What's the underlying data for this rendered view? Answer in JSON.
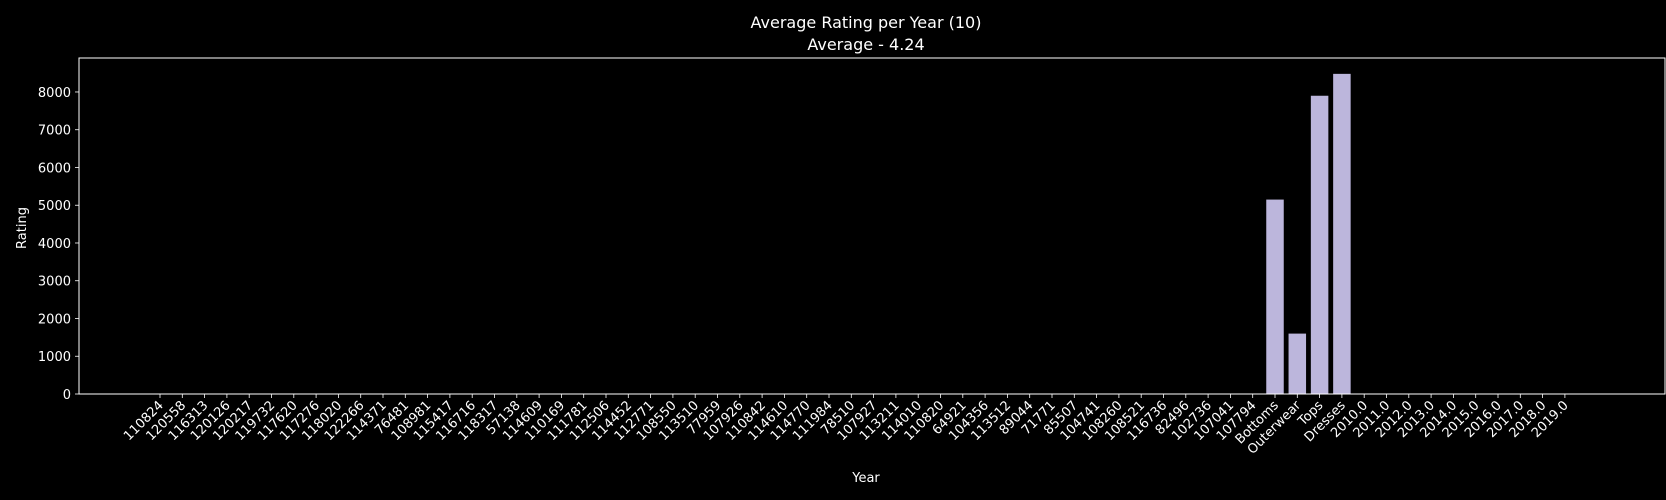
{
  "chart_data": {
    "type": "bar",
    "title": "Average Rating per Year (10)",
    "subtitle": "Average - 4.24",
    "xlabel": "Year",
    "ylabel": "Rating",
    "ylim": [
      0,
      8900
    ],
    "yticks": [
      0,
      1000,
      2000,
      3000,
      4000,
      5000,
      6000,
      7000,
      8000
    ],
    "grid": false,
    "legend": "none",
    "colors": {
      "background": "#000000",
      "bar": "#bcb6dc",
      "bar_small": "#7fc8b4",
      "text": "#ffffff",
      "axis": "#ffffff"
    },
    "categories": [
      "110824",
      "120558",
      "116313",
      "120126",
      "120217",
      "119732",
      "117620",
      "117276",
      "118020",
      "122266",
      "114371",
      "76481",
      "108981",
      "115417",
      "116716",
      "118317",
      "57138",
      "114609",
      "110169",
      "111781",
      "112506",
      "114452",
      "112771",
      "108550",
      "113510",
      "77959",
      "107926",
      "110842",
      "114610",
      "114770",
      "111984",
      "78510",
      "107927",
      "113211",
      "114010",
      "110820",
      "64921",
      "104356",
      "113512",
      "89044",
      "71771",
      "85507",
      "104741",
      "108260",
      "108521",
      "116736",
      "82496",
      "102736",
      "107041",
      "107794",
      "Bottoms",
      "Outerwear",
      "Tops",
      "Dresses",
      "2010.0",
      "2011.0",
      "2012.0",
      "2013.0",
      "2014.0",
      "2015.0",
      "2016.0",
      "2017.0",
      "2018.0",
      "2019.0"
    ],
    "values": [
      1,
      1,
      1,
      1,
      1,
      1,
      1,
      3,
      3,
      3,
      3,
      3,
      3,
      3,
      3,
      3,
      3,
      3,
      3,
      3,
      3,
      3,
      3,
      3,
      3,
      3,
      3,
      3,
      3,
      3,
      3,
      5,
      5,
      5,
      5,
      5,
      5,
      5,
      5,
      5,
      5,
      5,
      5,
      5,
      5,
      5,
      5,
      5,
      5,
      5,
      5150,
      1600,
      7900,
      8480,
      0,
      0,
      0,
      0,
      0,
      0,
      0,
      0,
      0,
      0
    ]
  }
}
